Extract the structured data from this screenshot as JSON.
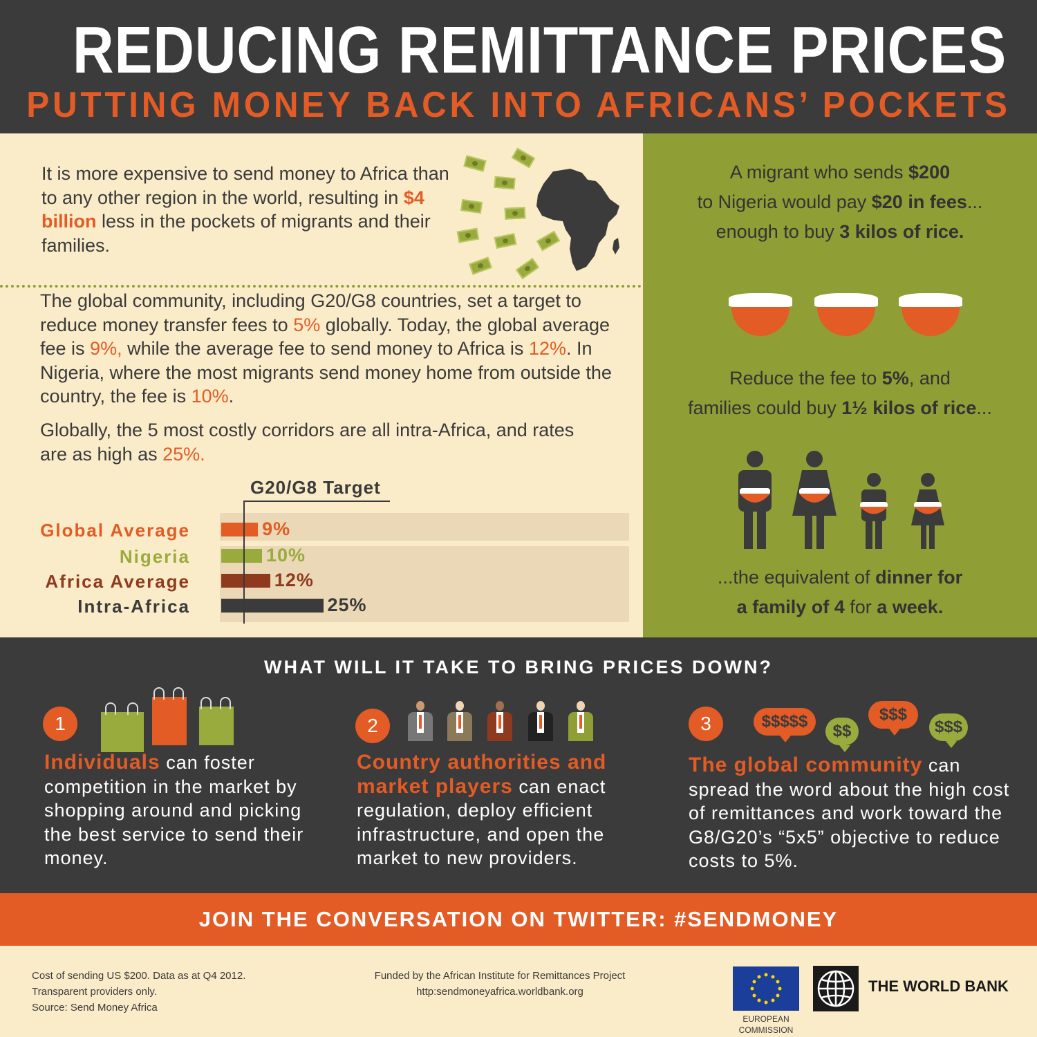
{
  "header": {
    "title": "REDUCING REMITTANCE PRICES",
    "subtitle": "PUTTING MONEY BACK INTO AFRICANS’ POCKETS"
  },
  "left": {
    "intro": {
      "p1": "It is more expensive to send money to Africa than to any other region in the world, resulting in ",
      "highlight": "$4 billion",
      "p2": " less in the pockets of migrants and their families."
    },
    "para2": {
      "t1": "The global community, including G20/G8 countries, set a target to reduce money transfer fees to ",
      "h1": "5%",
      "t2": " globally. Today, the global average fee is ",
      "h2": "9%,",
      "t3": " while the average fee to send money to Africa is ",
      "h3": "12%",
      "t4": ". In Nigeria, where the most migrants send money home from outside the country, the fee is ",
      "h4": "10%",
      "t5": "."
    },
    "para3": {
      "t1": "Globally, the 5 most costly corridors are all intra-Africa, and rates are as high as ",
      "h1": "25%."
    }
  },
  "chart_data": {
    "type": "bar",
    "orientation": "horizontal",
    "target_label": "G20/G8 Target",
    "target_value": 5,
    "categories": [
      "Global Average",
      "Nigeria",
      "Africa Average",
      "Intra-Africa"
    ],
    "values": [
      9,
      10,
      12,
      25
    ],
    "value_labels": [
      "9%",
      "10%",
      "12%",
      "25%"
    ],
    "colors": [
      "#e35b25",
      "#9aab3d",
      "#8e3a1e",
      "#3b3b3b"
    ],
    "xlim": [
      0,
      25
    ]
  },
  "right": {
    "block1": {
      "t1": "A migrant who sends ",
      "b1": "$200",
      "t2": "to Nigeria would pay ",
      "b2": "$20 in fees",
      "t3": "...",
      "t4": "enough to buy ",
      "b3": "3 kilos of rice."
    },
    "block2": {
      "t1": "Reduce the fee to ",
      "b1": "5%",
      "t2": ", and",
      "t3": "families could buy ",
      "b2": "1½ kilos of rice",
      "t4": "..."
    },
    "block3": {
      "t1": "...the equivalent of ",
      "b1": "dinner for",
      "b2": "a family of 4",
      "t2": " for ",
      "b3": "a week."
    }
  },
  "section": {
    "question": "WHAT WILL IT TAKE TO BRING PRICES DOWN?",
    "steps": [
      {
        "num": "1",
        "head": "Individuals",
        "text": " can foster competition in the market by shopping around and picking the best service to send their money."
      },
      {
        "num": "2",
        "head": "Country authorities and market players",
        "text": " can enact regulation, deploy efficient infrastructure, and open the market to new providers."
      },
      {
        "num": "3",
        "head": "The global community",
        "text": " can spread the word about the high cost of remittances and work toward the G8/G20’s “5x5” objective to reduce costs to 5%."
      }
    ],
    "bubbles": [
      "$$$$$",
      "$$",
      "$$$",
      "$$$"
    ]
  },
  "twitter": {
    "text": "JOIN THE CONVERSATION ON TWITTER: #SENDMONEY"
  },
  "footer": {
    "note1": "Cost of sending US $200. Data as at Q4 2012.",
    "note2": "Transparent providers only.",
    "note3": "Source: Send Money Africa",
    "funded": "Funded by the African Institute for Remittances Project",
    "url": "http:sendmoneyafrica.worldbank.org",
    "eu_line1": "EUROPEAN",
    "eu_line2": "COMMISSION",
    "wb": "THE WORLD BANK"
  },
  "colors": {
    "dark": "#3b3b3b",
    "orange": "#e35b25",
    "olive": "#8f9e35",
    "cream": "#fbecc9",
    "brown": "#8e3a1e"
  }
}
